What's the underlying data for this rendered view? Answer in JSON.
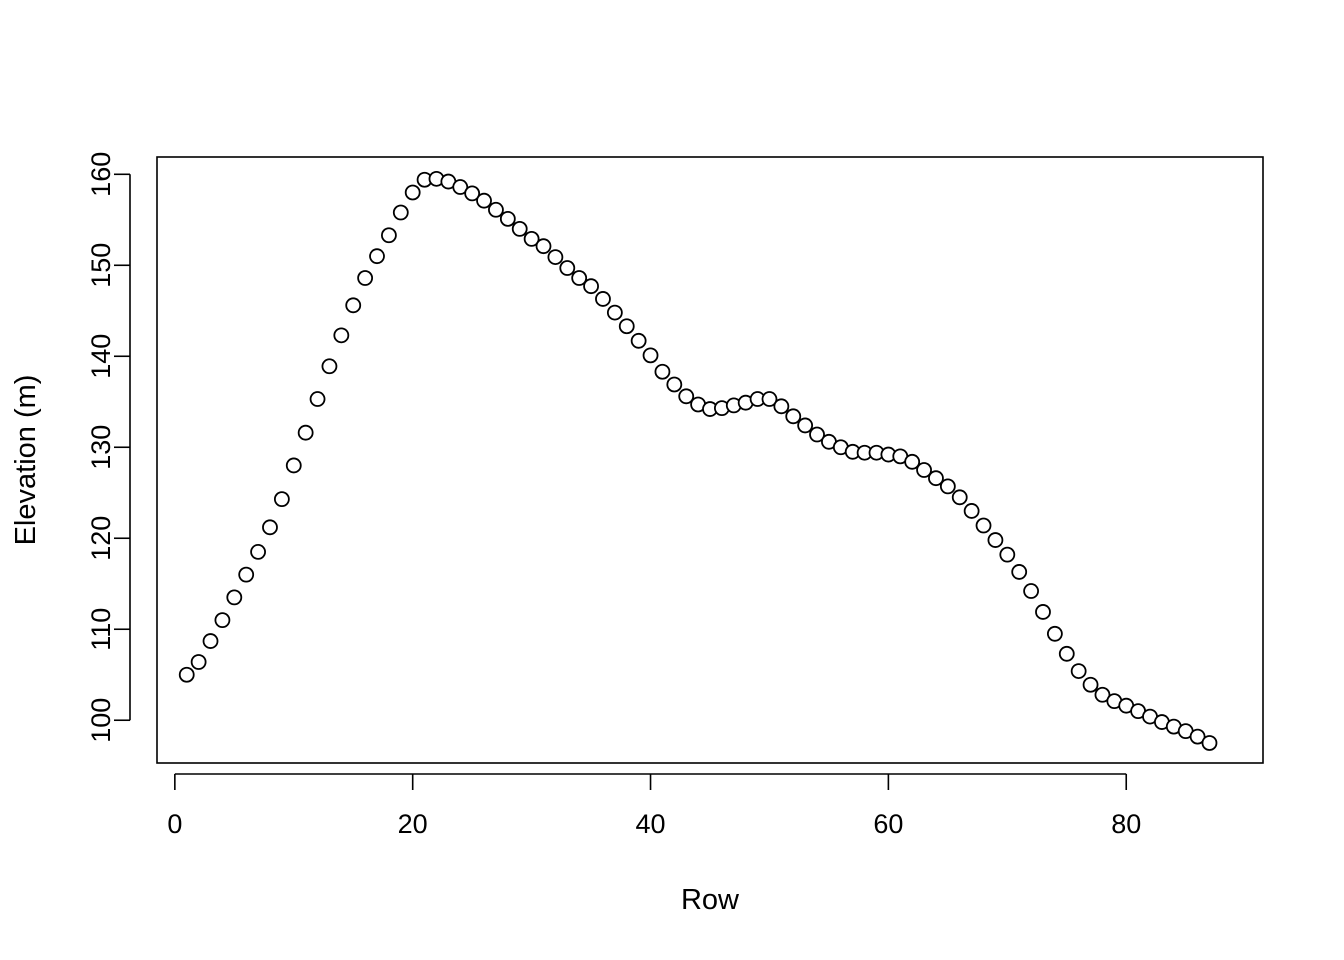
{
  "chart_data": {
    "type": "scatter",
    "title": "",
    "xlabel": "Row",
    "ylabel": "Elevation (m)",
    "xlim": [
      -1.5,
      91.5
    ],
    "ylim": [
      95.3,
      161.9
    ],
    "x_ticks": [
      0,
      20,
      40,
      60,
      80
    ],
    "y_ticks": [
      100,
      110,
      120,
      130,
      140,
      150,
      160
    ],
    "grid": false,
    "legend": "none",
    "marker": "open-circle",
    "colors": {
      "point_stroke": "#000000",
      "point_fill": "#ffffff",
      "axis": "#000000"
    },
    "x": [
      1,
      2,
      3,
      4,
      5,
      6,
      7,
      8,
      9,
      10,
      11,
      12,
      13,
      14,
      15,
      16,
      17,
      18,
      19,
      20,
      21,
      22,
      23,
      24,
      25,
      26,
      27,
      28,
      29,
      30,
      31,
      32,
      33,
      34,
      35,
      36,
      37,
      38,
      39,
      40,
      41,
      42,
      43,
      44,
      45,
      46,
      47,
      48,
      49,
      50,
      51,
      52,
      53,
      54,
      55,
      56,
      57,
      58,
      59,
      60,
      61,
      62,
      63,
      64,
      65,
      66,
      67,
      68,
      69,
      70,
      71,
      72,
      73,
      74,
      75,
      76,
      77,
      78,
      79,
      80,
      81,
      82,
      83,
      84,
      85,
      86,
      87
    ],
    "y": [
      105,
      106.4,
      108.7,
      111,
      113.5,
      116,
      118.5,
      121.2,
      124.3,
      128,
      131.6,
      135.3,
      138.9,
      142.3,
      145.6,
      148.6,
      151,
      153.3,
      155.8,
      158,
      159.4,
      159.5,
      159.2,
      158.6,
      157.9,
      157.1,
      156.1,
      155.1,
      154,
      152.9,
      152.1,
      150.9,
      149.7,
      148.6,
      147.7,
      146.3,
      144.8,
      143.3,
      141.7,
      140.1,
      138.3,
      136.9,
      135.6,
      134.7,
      134.2,
      134.3,
      134.6,
      134.9,
      135.3,
      135.3,
      134.5,
      133.4,
      132.4,
      131.4,
      130.6,
      130,
      129.5,
      129.4,
      129.4,
      129.2,
      129,
      128.4,
      127.5,
      126.6,
      125.7,
      124.5,
      123,
      121.4,
      119.8,
      118.2,
      116.3,
      114.2,
      111.9,
      109.5,
      107.3,
      105.4,
      103.9,
      102.8,
      102.1,
      101.6,
      101,
      100.4,
      99.8,
      99.3,
      98.8,
      98.2,
      97.5
    ]
  }
}
